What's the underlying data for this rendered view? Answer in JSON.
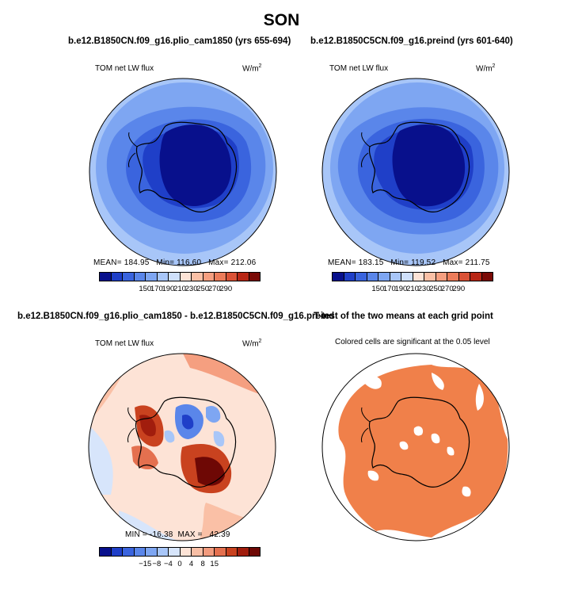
{
  "season": "SON",
  "colors": {
    "abs_scale": [
      "#08108c",
      "#1f3fc8",
      "#3a64de",
      "#5a86ea",
      "#7ea6f2",
      "#a8c6f8",
      "#cfe0fb",
      "#fde3d6",
      "#fac0a6",
      "#f59f80",
      "#ec7c5a",
      "#da5236",
      "#b82615",
      "#7a0a06"
    ],
    "diff_scale": [
      "#08108c",
      "#1f3fc8",
      "#3a64de",
      "#5a86ea",
      "#7ea6f2",
      "#a8c6f8",
      "#d7e5fb",
      "#fde3d6",
      "#f8bfa6",
      "#f29b7e",
      "#e4704f",
      "#c9421f",
      "#a11d0d",
      "#6e0805"
    ],
    "significant": "#f0804a"
  },
  "panels": {
    "p1": {
      "title": "b.e12.B1850CN.f09_g16.plio_cam1850 (yrs 655-694)",
      "left_label": "TOM net LW flux",
      "units": "W/m",
      "units_exp": "2",
      "stats": "MEAN= 184.95   Min= 116.60   Max= 212.06",
      "ticks": [
        "150",
        "170",
        "190",
        "210",
        "230",
        "250",
        "270",
        "290"
      ]
    },
    "p2": {
      "title": "b.e12.B1850C5CN.f09_g16.preind (yrs 601-640)",
      "left_label": "TOM net LW flux",
      "units": "W/m",
      "units_exp": "2",
      "stats": "MEAN= 183.15   Min= 119.52   Max= 211.75",
      "ticks": [
        "150",
        "170",
        "190",
        "210",
        "230",
        "250",
        "270",
        "290"
      ]
    },
    "p3": {
      "title": "b.e12.B1850CN.f09_g16.plio_cam1850 - b.e12.B1850C5CN.f09_g16.preind",
      "left_label": "TOM net LW flux",
      "units": "W/m",
      "units_exp": "2",
      "stats": "MIN = -16.38  MAX =   42.39",
      "ticks": [
        "-15",
        "-8",
        "-4",
        "0",
        "4",
        "8",
        "15"
      ]
    },
    "p4": {
      "title": "T-test of the two means at each grid point",
      "subtitle": "Colored cells are significant at the 0.05 level"
    }
  }
}
